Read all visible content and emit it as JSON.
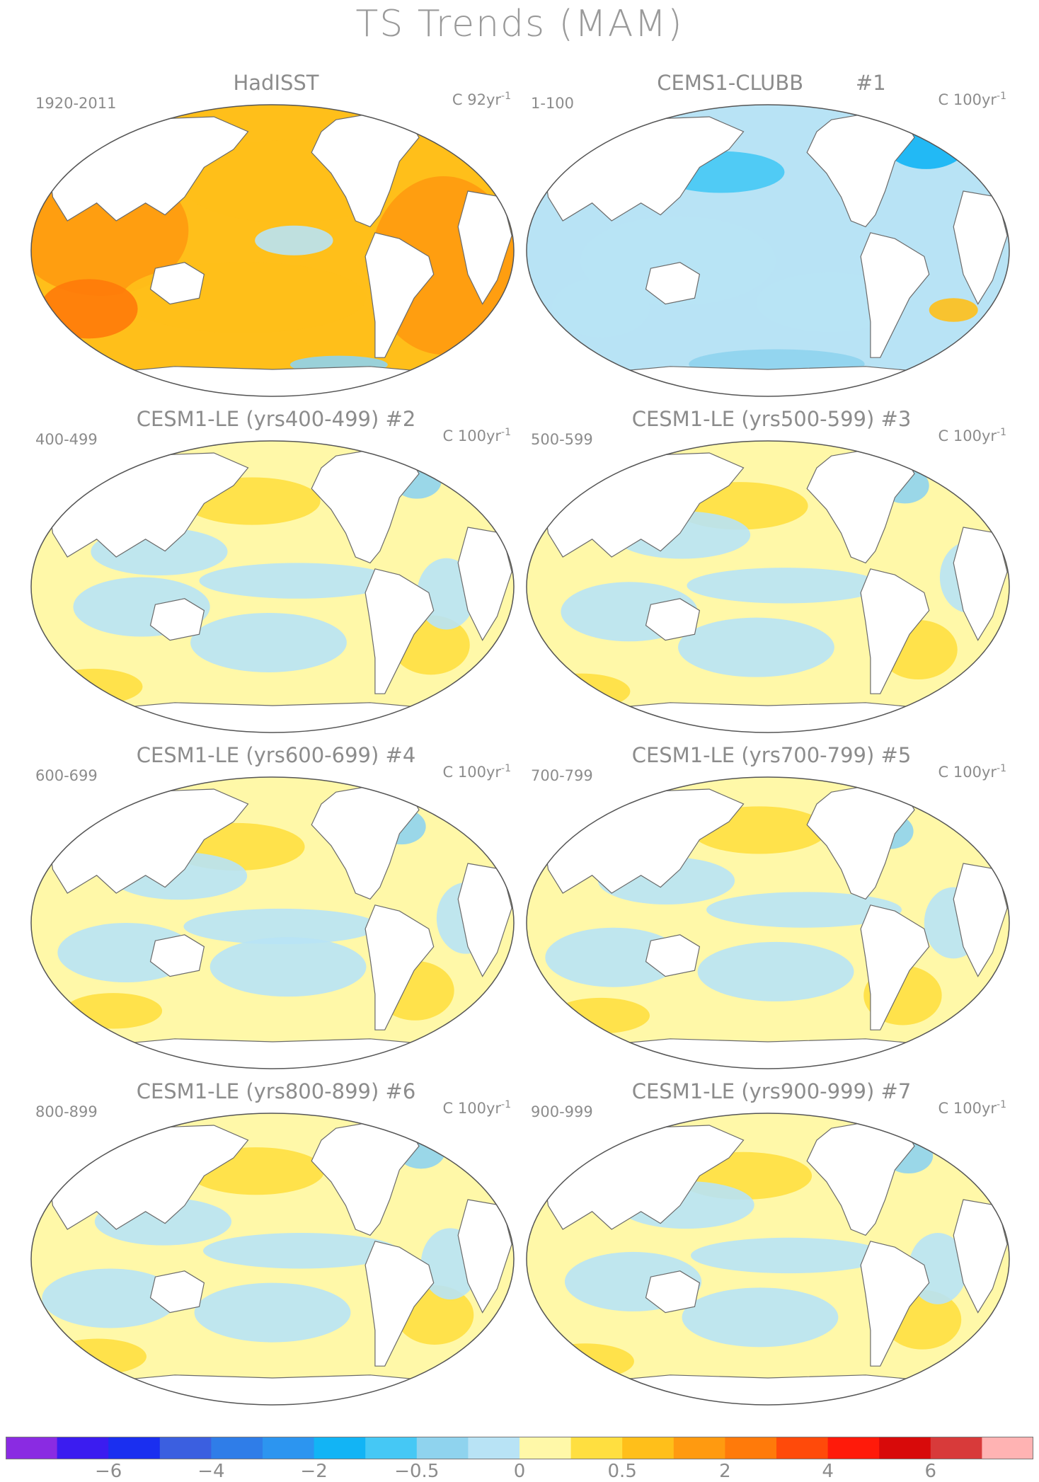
{
  "title": "TS Trends (MAM)",
  "panels": [
    {
      "title": "HadISST",
      "years": "1920-2011",
      "units_prefix": "C 92yr",
      "units_exp": "-1",
      "style": "warm"
    },
    {
      "title": "CEMS1-CLUBB        #1",
      "years": "1-100",
      "units_prefix": "C 100yr",
      "units_exp": "-1",
      "style": "cool"
    },
    {
      "title": "CESM1-LE (yrs400-499) #2",
      "years": "400-499",
      "units_prefix": "C 100yr",
      "units_exp": "-1",
      "style": "mixed"
    },
    {
      "title": "CESM1-LE (yrs500-599) #3",
      "years": "500-599",
      "units_prefix": "C 100yr",
      "units_exp": "-1",
      "style": "mixed"
    },
    {
      "title": "CESM1-LE (yrs600-699) #4",
      "years": "600-699",
      "units_prefix": "C 100yr",
      "units_exp": "-1",
      "style": "mixed"
    },
    {
      "title": "CESM1-LE (yrs700-799) #5",
      "years": "700-799",
      "units_prefix": "C 100yr",
      "units_exp": "-1",
      "style": "mixed"
    },
    {
      "title": "CESM1-LE (yrs800-899) #6",
      "years": "800-899",
      "units_prefix": "C 100yr",
      "units_exp": "-1",
      "style": "mixed"
    },
    {
      "title": "CESM1-LE (yrs900-999) #7",
      "years": "900-999",
      "units_prefix": "C 100yr",
      "units_exp": "-1",
      "style": "mixed"
    }
  ],
  "colorbar": {
    "colors": [
      "#8a2be2",
      "#3b1cf0",
      "#1a2ff0",
      "#3b5fe0",
      "#2f7de8",
      "#2c95f0",
      "#12b4f5",
      "#45c8f5",
      "#8fd3ee",
      "#b8e3f5",
      "#fff8a8",
      "#ffdf40",
      "#ffbf1a",
      "#ff9a10",
      "#ff7a0a",
      "#ff4a0a",
      "#ff1a0a",
      "#d80a0a",
      "#d83a3a",
      "#ffb3b3"
    ],
    "labels": [
      "−6",
      "−4",
      "−2",
      "−0.5",
      "0",
      "0.5",
      "2",
      "4",
      "6"
    ]
  }
}
